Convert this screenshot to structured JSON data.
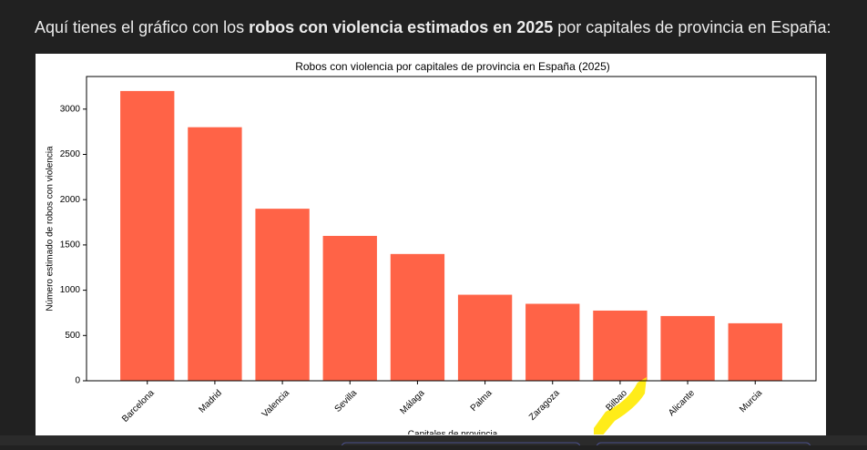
{
  "message": {
    "before": "Aquí tienes el gráfico con los ",
    "bold": "robos con violencia estimados en 2025",
    "after": " por capitales de provincia en España:"
  },
  "chart_data": {
    "type": "bar",
    "title": "Robos con violencia por capitales de provincia en España (2025)",
    "x_label": "Capitales de provincia",
    "y_label": "Número estimado de robos con violencia",
    "categories": [
      "Barcelona",
      "Madrid",
      "Valencia",
      "Sevilla",
      "Málaga",
      "Palma",
      "Zaragoza",
      "Bilbao",
      "Alicante",
      "Murcia"
    ],
    "values": [
      3200,
      2800,
      1900,
      1600,
      1400,
      950,
      850,
      775,
      715,
      635
    ],
    "color": "#ff6347",
    "ylim": [
      0,
      3360
    ],
    "yticks": [
      0,
      500,
      1000,
      1500,
      2000,
      2500,
      3000
    ],
    "grid": false
  }
}
